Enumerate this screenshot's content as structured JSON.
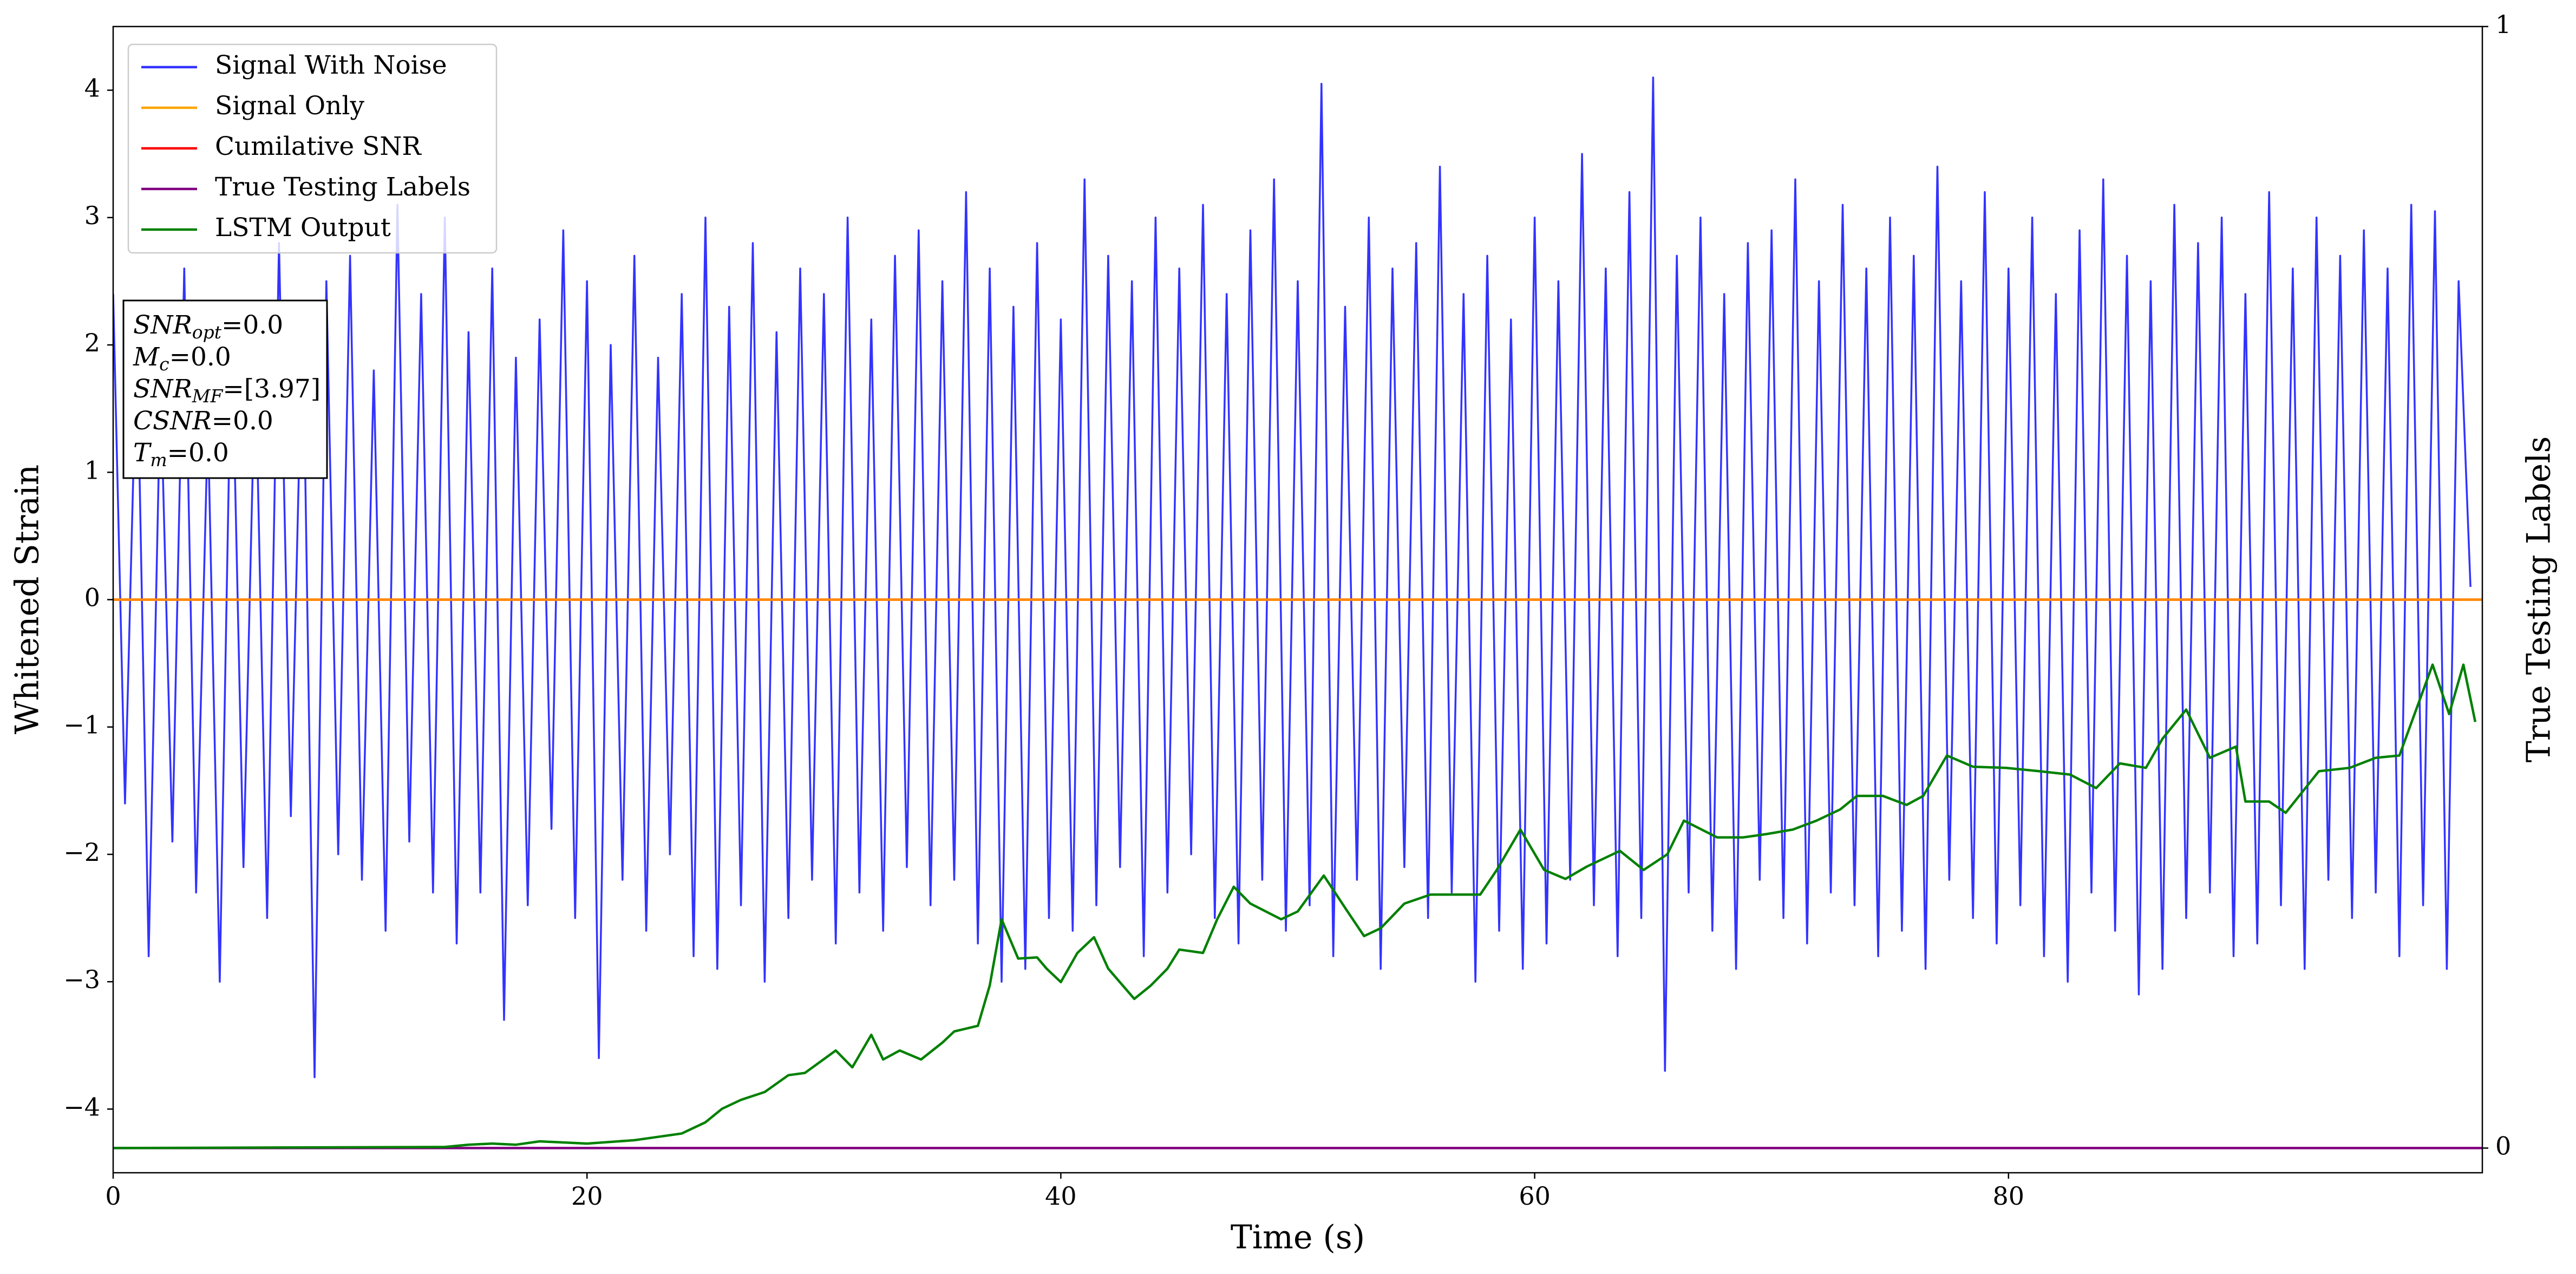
{
  "chart_data": {
    "type": "line",
    "xlabel": "Time (s)",
    "ylabel": "Whitened Strain",
    "y2label": "True Testing Labels",
    "xlim": [
      0,
      100
    ],
    "ylim": [
      -4.5,
      4.5
    ],
    "y2lim": [
      -0.022,
      1.0
    ],
    "xticks": [
      0,
      20,
      40,
      60,
      80
    ],
    "yticks": [
      {
        "value": -4,
        "label": "−4"
      },
      {
        "value": -3,
        "label": "−3"
      },
      {
        "value": -2,
        "label": "−2"
      },
      {
        "value": -1,
        "label": "−1"
      },
      0,
      1,
      2,
      3,
      4
    ],
    "y2ticks": [
      0,
      1
    ],
    "grid": false,
    "legend": "upper left",
    "annotation": [
      {
        "symbol": "SNR",
        "subscript": "opt",
        "text": "=0.0"
      },
      {
        "symbol": "M",
        "subscript": "c",
        "text": "=0.0"
      },
      {
        "symbol": "SNR",
        "subscript": "MF",
        "text": "=[3.97]"
      },
      {
        "symbol": "CSNR",
        "text": "=0.0"
      },
      {
        "symbol": "T",
        "subscript": "m",
        "text": "=0.0"
      }
    ],
    "series": [
      {
        "name": "Signal With Noise",
        "color": "#3333ff",
        "axis": "y",
        "x": [
          0,
          0.5,
          1,
          1.5,
          2,
          2.5,
          3,
          3.5,
          4,
          4.5,
          5,
          5.5,
          6,
          6.5,
          7,
          7.5,
          8,
          8.5,
          9,
          9.5,
          10,
          10.5,
          11,
          11.5,
          12,
          12.5,
          13,
          13.5,
          14,
          14.5,
          15,
          15.5,
          16,
          16.5,
          17,
          17.5,
          18,
          18.5,
          19,
          19.5,
          20,
          20.5,
          21,
          21.5,
          22,
          22.5,
          23,
          23.5,
          24,
          24.5,
          25,
          25.5,
          26,
          26.5,
          27,
          27.5,
          28,
          28.5,
          29,
          29.5,
          30,
          30.5,
          31,
          31.5,
          32,
          32.5,
          33,
          33.5,
          34,
          34.5,
          35,
          35.5,
          36,
          36.5,
          37,
          37.5,
          38,
          38.5,
          39,
          39.5,
          40,
          40.5,
          41,
          41.5,
          42,
          42.5,
          43,
          43.5,
          44,
          44.5,
          45,
          45.5,
          46,
          46.5,
          47,
          47.5,
          48,
          48.5,
          49,
          49.5,
          50,
          50.5,
          51,
          51.5,
          52,
          52.5,
          53,
          53.5,
          54,
          54.5,
          55,
          55.5,
          56,
          56.5,
          57,
          57.5,
          58,
          58.5,
          59,
          59.5,
          60,
          60.5,
          61,
          61.5,
          62,
          62.5,
          63,
          63.5,
          64,
          64.5,
          65,
          65.5,
          66,
          66.5,
          67,
          67.5,
          68,
          68.5,
          69,
          69.5,
          70,
          70.5,
          71,
          71.5,
          72,
          72.5,
          73,
          73.5,
          74,
          74.5,
          75,
          75.5,
          76,
          76.5,
          77,
          77.5,
          78,
          78.5,
          79,
          79.5,
          80,
          80.5,
          81,
          81.5,
          82,
          82.5,
          83,
          83.5,
          84,
          84.5,
          85,
          85.5,
          86,
          86.5,
          87,
          87.5,
          88,
          88.5,
          89,
          89.5,
          90,
          90.5,
          91,
          91.5,
          92,
          92.5,
          93,
          93.5,
          94,
          94.5,
          95,
          95.5,
          96,
          96.5,
          97,
          97.5,
          98,
          98.5,
          99,
          99.5
        ],
        "values": [
          2.4,
          -1.6,
          2.1,
          -2.8,
          1.7,
          -1.9,
          2.6,
          -2.3,
          1.4,
          -3.0,
          2.2,
          -2.1,
          1.9,
          -2.5,
          2.8,
          -1.7,
          2.3,
          -3.75,
          2.5,
          -2.0,
          2.7,
          -2.2,
          1.8,
          -2.6,
          3.1,
          -1.9,
          2.4,
          -2.3,
          3.0,
          -2.7,
          2.1,
          -2.3,
          2.6,
          -3.3,
          1.9,
          -2.4,
          2.2,
          -1.8,
          2.9,
          -2.5,
          2.5,
          -3.6,
          2.0,
          -2.2,
          2.7,
          -2.6,
          1.9,
          -2.0,
          2.4,
          -2.8,
          3.0,
          -2.9,
          2.3,
          -2.4,
          2.8,
          -3.0,
          2.1,
          -2.5,
          2.6,
          -2.2,
          2.4,
          -2.7,
          3.0,
          -2.3,
          2.2,
          -2.6,
          2.7,
          -2.1,
          2.9,
          -2.4,
          2.5,
          -2.2,
          3.2,
          -2.7,
          2.6,
          -3.0,
          2.3,
          -2.9,
          2.8,
          -2.5,
          2.2,
          -2.6,
          3.3,
          -2.4,
          2.7,
          -2.1,
          2.5,
          -2.8,
          3.0,
          -2.3,
          2.6,
          -2.0,
          3.1,
          -2.5,
          2.4,
          -2.7,
          2.9,
          -2.2,
          3.3,
          -2.6,
          2.5,
          -2.4,
          4.05,
          -2.8,
          2.3,
          -2.2,
          3.0,
          -2.9,
          2.6,
          -2.1,
          2.8,
          -2.5,
          3.4,
          -2.3,
          2.4,
          -3.0,
          2.7,
          -2.6,
          2.2,
          -2.9,
          3.0,
          -2.7,
          2.5,
          -2.2,
          3.5,
          -2.4,
          2.6,
          -2.8,
          3.2,
          -2.5,
          4.1,
          -3.7,
          2.7,
          -2.3,
          3.0,
          -2.6,
          2.4,
          -2.9,
          2.8,
          -2.2,
          2.9,
          -2.5,
          3.3,
          -2.7,
          2.5,
          -2.3,
          3.1,
          -2.4,
          2.6,
          -2.8,
          3.0,
          -2.6,
          2.7,
          -2.9,
          3.4,
          -2.2,
          2.5,
          -2.5,
          3.2,
          -2.7,
          2.6,
          -2.4,
          3.0,
          -2.8,
          2.4,
          -3.0,
          2.9,
          -2.3,
          3.3,
          -2.6,
          2.7,
          -3.1,
          2.5,
          -2.9,
          3.1,
          -2.5,
          2.8,
          -2.3,
          3.0,
          -2.8,
          2.4,
          -2.7,
          3.2,
          -2.4,
          2.6,
          -2.9,
          3.0,
          -2.2,
          2.7,
          -2.5,
          2.9,
          -2.3,
          2.6,
          -2.8,
          3.1,
          -2.4,
          3.05,
          -2.9,
          2.5,
          0.1
        ]
      },
      {
        "name": "Signal Only",
        "color": "#ffa500",
        "axis": "y",
        "x": [
          0,
          100
        ],
        "values": [
          0,
          0
        ]
      },
      {
        "name": "Cumilative SNR",
        "color": "#ff0000",
        "axis": "y",
        "x": [
          0,
          100
        ],
        "values": [
          0,
          0
        ]
      },
      {
        "name": "True Testing Labels",
        "color": "#800080",
        "axis": "y2",
        "x": [
          0,
          100
        ],
        "values": [
          0,
          0
        ]
      },
      {
        "name": "LSTM Output",
        "color": "#008000",
        "axis": "y2",
        "x": [
          0,
          14,
          15,
          16,
          17,
          18,
          20,
          22,
          23,
          24,
          25,
          25.7,
          26.5,
          27.5,
          28.5,
          29.2,
          30.5,
          31.2,
          32,
          32.5,
          33.2,
          34.1,
          35,
          35.5,
          36.5,
          37,
          37.5,
          38.2,
          39,
          39.4,
          40,
          40.7,
          41.4,
          42,
          43.1,
          43.8,
          44.5,
          45,
          46,
          46.6,
          47.3,
          48,
          49.3,
          50,
          51.1,
          52.1,
          52.8,
          53.5,
          54.5,
          55.6,
          56.6,
          57.7,
          58.4,
          59.4,
          60.4,
          61.3,
          62.2,
          63.6,
          64.6,
          65.6,
          66.3,
          67.7,
          68.8,
          69.8,
          70.9,
          71.9,
          72.9,
          73.6,
          74.7,
          75.7,
          76.4,
          77.4,
          78.5,
          79.9,
          81.3,
          82.6,
          83.7,
          84.7,
          85.8,
          86.5,
          87.5,
          88.5,
          89.6,
          90,
          91,
          91.7,
          93.1,
          94.4,
          95.5,
          96.5,
          97.9,
          98.6,
          99.2,
          99.7
        ],
        "values": [
          0,
          0.001,
          0.003,
          0.004,
          0.003,
          0.006,
          0.004,
          0.007,
          0.01,
          0.013,
          0.023,
          0.035,
          0.043,
          0.05,
          0.065,
          0.067,
          0.087,
          0.072,
          0.101,
          0.079,
          0.087,
          0.079,
          0.094,
          0.104,
          0.109,
          0.145,
          0.204,
          0.169,
          0.17,
          0.16,
          0.148,
          0.174,
          0.188,
          0.16,
          0.133,
          0.145,
          0.16,
          0.177,
          0.174,
          0.204,
          0.233,
          0.218,
          0.204,
          0.211,
          0.243,
          0.211,
          0.189,
          0.196,
          0.218,
          0.226,
          0.226,
          0.226,
          0.248,
          0.284,
          0.248,
          0.24,
          0.251,
          0.265,
          0.248,
          0.262,
          0.292,
          0.277,
          0.277,
          0.28,
          0.284,
          0.292,
          0.302,
          0.314,
          0.314,
          0.306,
          0.314,
          0.35,
          0.34,
          0.339,
          0.336,
          0.333,
          0.321,
          0.343,
          0.339,
          0.365,
          0.391,
          0.348,
          0.358,
          0.309,
          0.309,
          0.299,
          0.336,
          0.339,
          0.348,
          0.35,
          0.431,
          0.387,
          0.431,
          0.38
        ]
      }
    ]
  }
}
